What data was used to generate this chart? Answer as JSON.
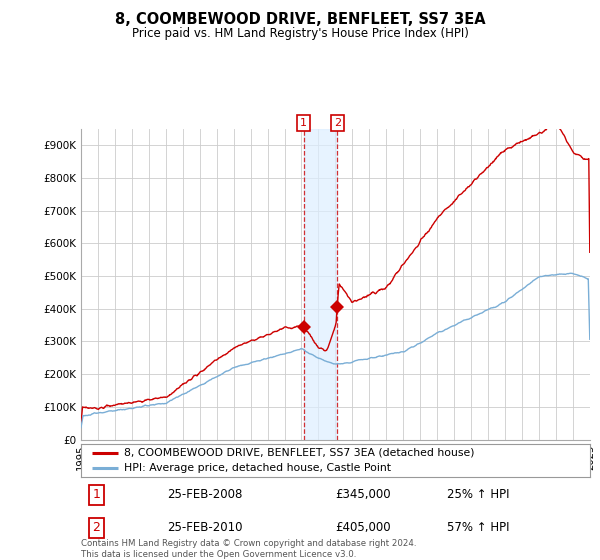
{
  "title": "8, COOMBEWOOD DRIVE, BENFLEET, SS7 3EA",
  "subtitle": "Price paid vs. HM Land Registry's House Price Index (HPI)",
  "ylim": [
    0,
    950000
  ],
  "yticks": [
    0,
    100000,
    200000,
    300000,
    400000,
    500000,
    600000,
    700000,
    800000,
    900000
  ],
  "ytick_labels": [
    "£0",
    "£100K",
    "£200K",
    "£300K",
    "£400K",
    "£500K",
    "£600K",
    "£700K",
    "£800K",
    "£900K"
  ],
  "red_color": "#cc0000",
  "blue_color": "#7aaed6",
  "span_color": "#ddeeff",
  "transaction1_year": 2008.12,
  "transaction1_price": 345000,
  "transaction2_year": 2010.12,
  "transaction2_price": 405000,
  "annotation1": "25-FEB-2008",
  "annotation1_price": "£345,000",
  "annotation1_hpi": "25% ↑ HPI",
  "annotation2": "25-FEB-2010",
  "annotation2_price": "£405,000",
  "annotation2_hpi": "57% ↑ HPI",
  "legend_line1": "8, COOMBEWOOD DRIVE, BENFLEET, SS7 3EA (detached house)",
  "legend_line2": "HPI: Average price, detached house, Castle Point",
  "footer": "Contains HM Land Registry data © Crown copyright and database right 2024.\nThis data is licensed under the Open Government Licence v3.0.",
  "background_color": "#ffffff",
  "grid_color": "#cccccc",
  "xlim_start": 1995,
  "xlim_end": 2025
}
